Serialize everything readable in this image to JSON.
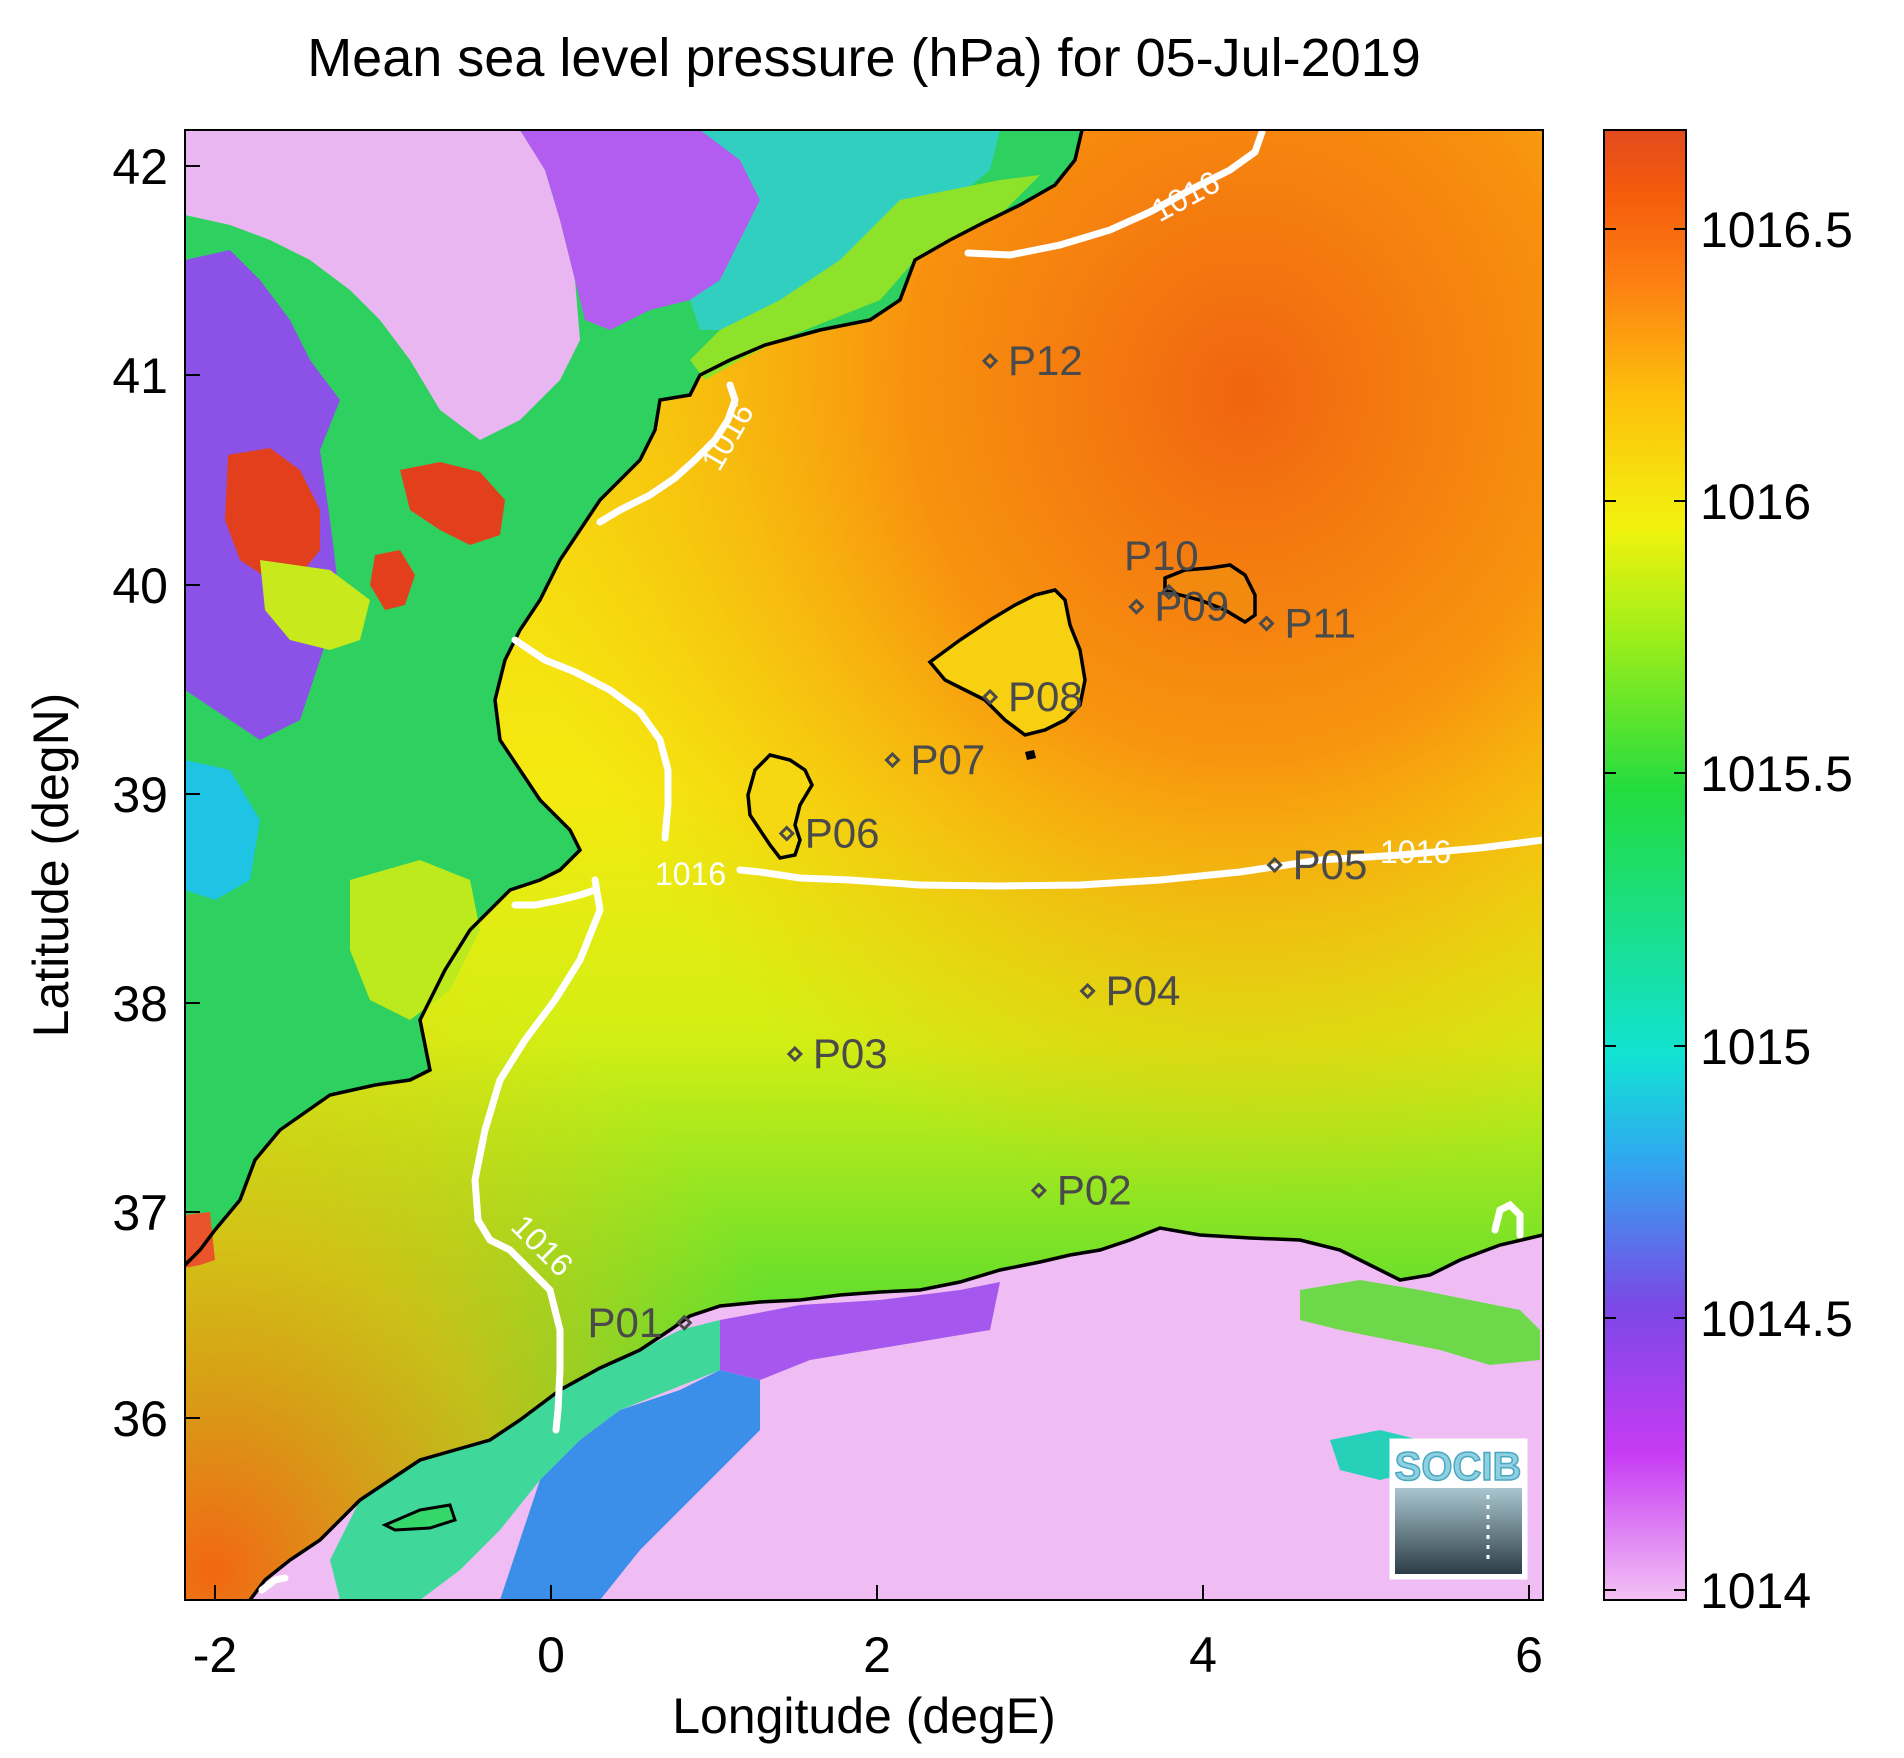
{
  "title": "Mean sea level pressure (hPa) for 05-Jul-2019",
  "x_axis": {
    "label": "Longitude (degE)",
    "range": [
      -2.25,
      6.1
    ],
    "ticks": [
      "-2",
      "0",
      "2",
      "4",
      "6"
    ]
  },
  "y_axis": {
    "label": "Latitude (degN)",
    "range": [
      35.2,
      42.2
    ],
    "ticks": [
      "36",
      "37",
      "38",
      "39",
      "40",
      "41",
      "42"
    ]
  },
  "colorbar": {
    "range": [
      1013.97,
      1016.7
    ],
    "ticks": [
      "1014",
      "1014.5",
      "1015",
      "1015.5",
      "1016",
      "1016.5"
    ],
    "colormap": [
      "#f3c1f4",
      "#c63bf4",
      "#7b48e6",
      "#2fa8f0",
      "#12e2d3",
      "#22dc3f",
      "#a3ef18",
      "#f2f20e",
      "#fdbf0c",
      "#fd7d12",
      "#f55a0c",
      "#e24a1f"
    ]
  },
  "contour": {
    "level": "1016",
    "color": "#ffffff"
  },
  "points": [
    {
      "id": "P01",
      "lon": 0.82,
      "lat": 36.52
    },
    {
      "id": "P02",
      "lon": 3.0,
      "lat": 37.15
    },
    {
      "id": "P03",
      "lon": 1.5,
      "lat": 37.8
    },
    {
      "id": "P04",
      "lon": 3.3,
      "lat": 38.1
    },
    {
      "id": "P05",
      "lon": 4.45,
      "lat": 38.7
    },
    {
      "id": "P06",
      "lon": 1.45,
      "lat": 38.85
    },
    {
      "id": "P07",
      "lon": 2.1,
      "lat": 39.2
    },
    {
      "id": "P08",
      "lon": 2.7,
      "lat": 39.5
    },
    {
      "id": "P09",
      "lon": 3.6,
      "lat": 39.93
    },
    {
      "id": "P10",
      "lon": 3.8,
      "lat": 40.0
    },
    {
      "id": "P11",
      "lon": 4.4,
      "lat": 39.85
    },
    {
      "id": "P12",
      "lon": 2.7,
      "lat": 41.1
    }
  ],
  "logo": {
    "text": "SOCIB"
  },
  "chart_data": {
    "type": "heatmap",
    "title": "Mean sea level pressure (hPa) for 05-Jul-2019",
    "xlabel": "Longitude (degE)",
    "ylabel": "Latitude (degN)",
    "xlim": [
      -2.25,
      6.1
    ],
    "ylim": [
      35.2,
      42.2
    ],
    "zlabel": "",
    "zlim": [
      1013.97,
      1016.7
    ],
    "contour_levels": [
      1016
    ],
    "series": [
      {
        "name": "P01",
        "x": 0.82,
        "y": 36.52
      },
      {
        "name": "P02",
        "x": 3.0,
        "y": 37.15
      },
      {
        "name": "P03",
        "x": 1.5,
        "y": 37.8
      },
      {
        "name": "P04",
        "x": 3.3,
        "y": 38.1
      },
      {
        "name": "P05",
        "x": 4.45,
        "y": 38.7
      },
      {
        "name": "P06",
        "x": 1.45,
        "y": 38.85
      },
      {
        "name": "P07",
        "x": 2.1,
        "y": 39.2
      },
      {
        "name": "P08",
        "x": 2.7,
        "y": 39.5
      },
      {
        "name": "P09",
        "x": 3.6,
        "y": 39.93
      },
      {
        "name": "P10",
        "x": 3.8,
        "y": 40.0
      },
      {
        "name": "P11",
        "x": 4.4,
        "y": 39.85
      },
      {
        "name": "P12",
        "x": 2.7,
        "y": 41.1
      }
    ]
  }
}
